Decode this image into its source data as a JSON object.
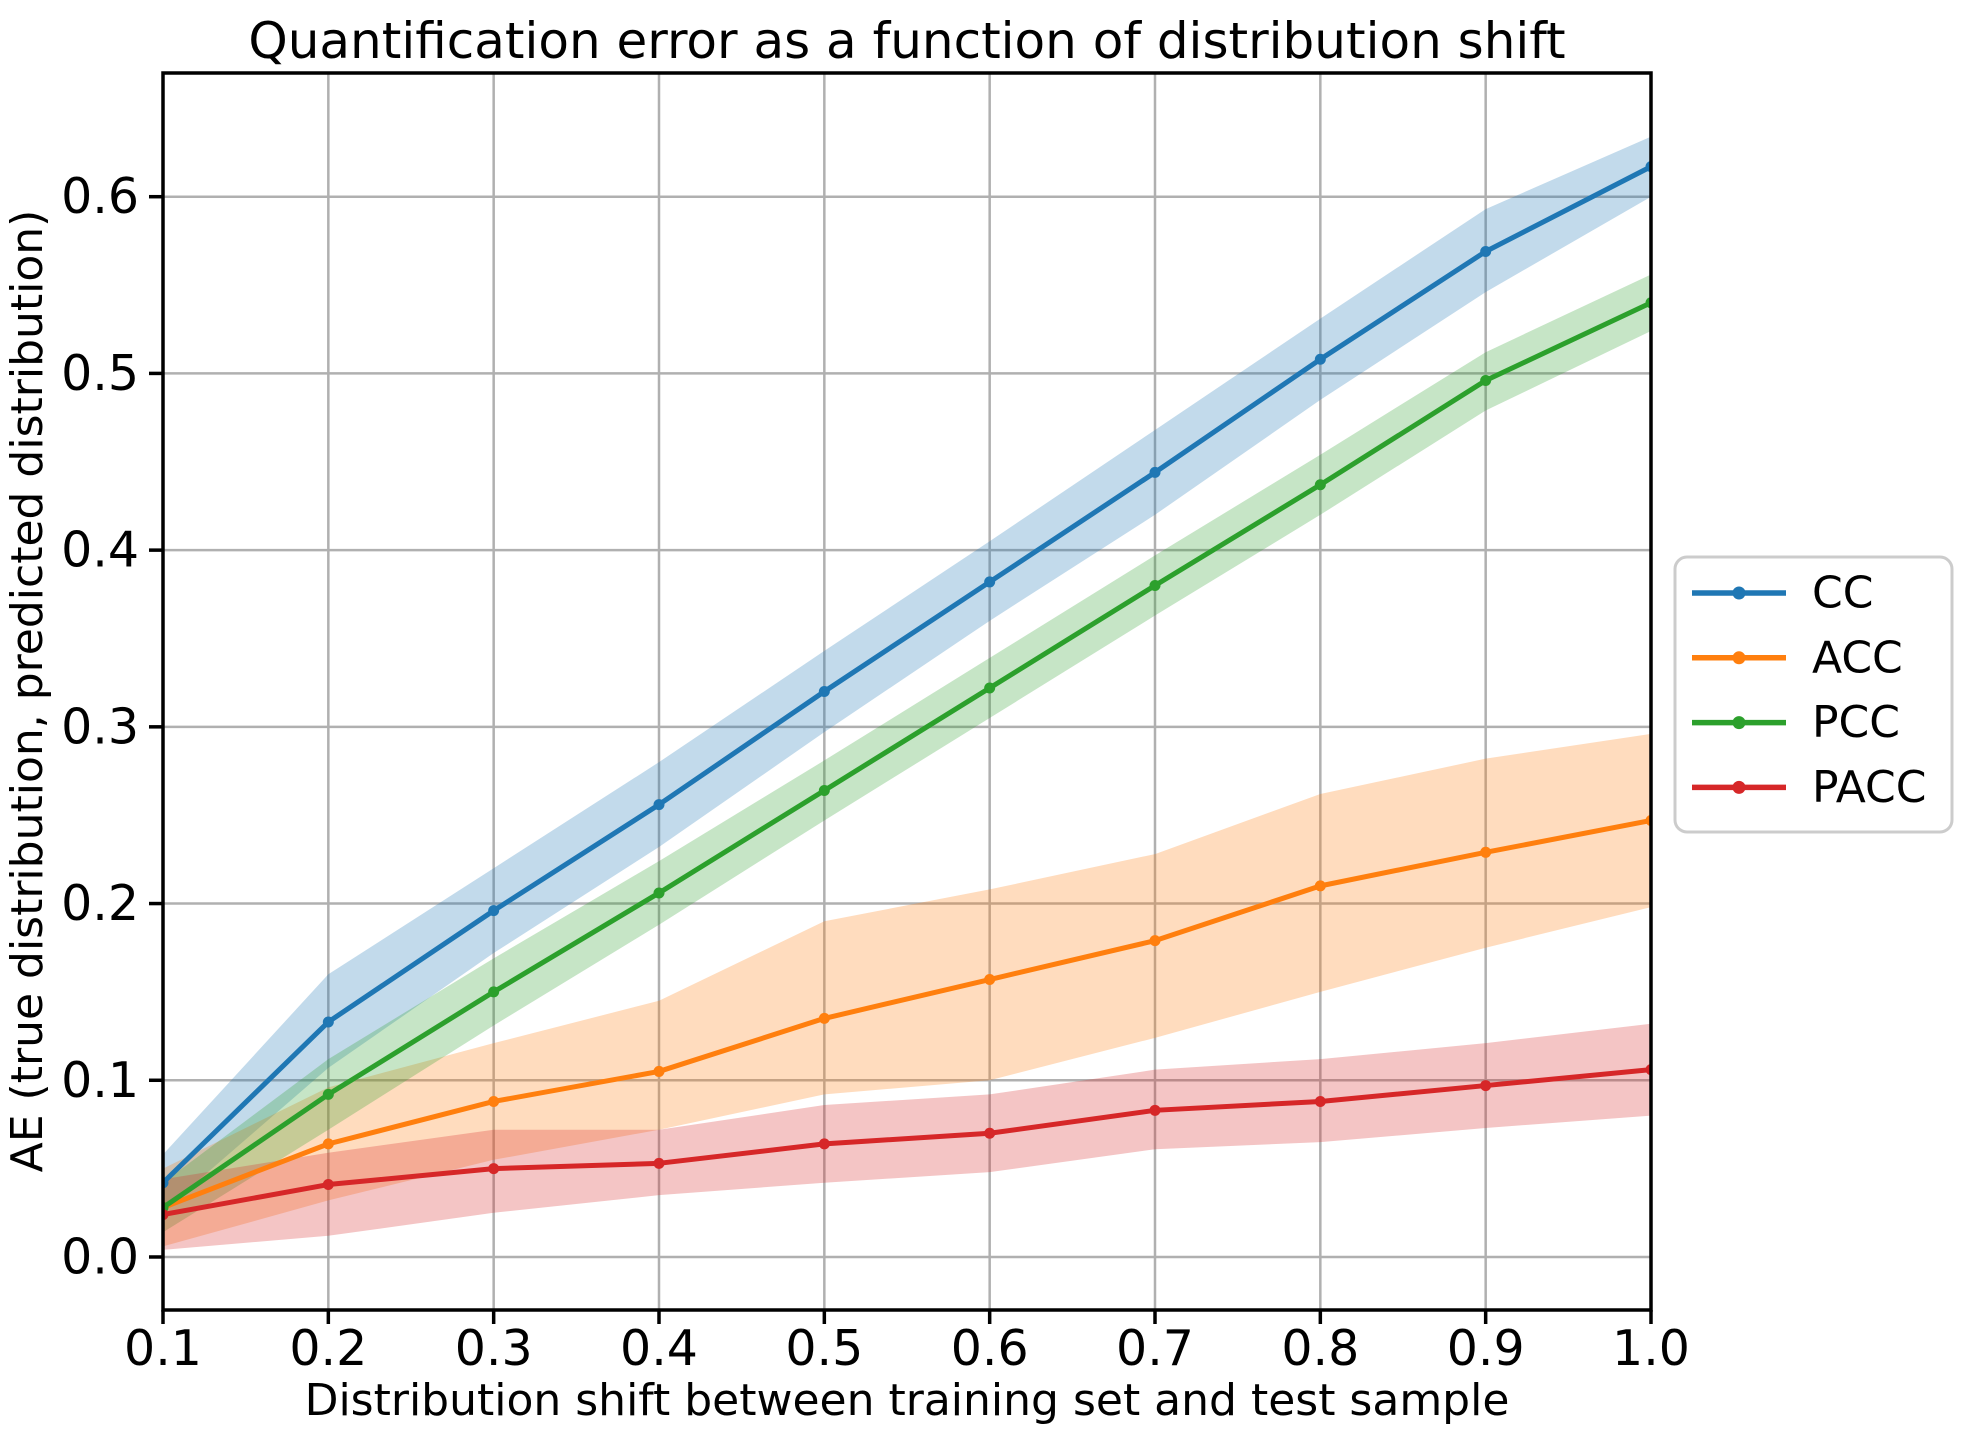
{
  "chart_data": {
    "type": "line",
    "title": "Quantification error as a function of distribution shift",
    "xlabel": "Distribution shift between training set and test sample",
    "ylabel": "AE (true distribution, predicted distribution)",
    "x": [
      0.1,
      0.2,
      0.3,
      0.4,
      0.5,
      0.6,
      0.7,
      0.8,
      0.9,
      1.0
    ],
    "xtick_labels": [
      "0.1",
      "0.2",
      "0.3",
      "0.4",
      "0.5",
      "0.6",
      "0.7",
      "0.8",
      "0.9",
      "1.0"
    ],
    "ytick_values": [
      0.0,
      0.1,
      0.2,
      0.3,
      0.4,
      0.5,
      0.6
    ],
    "ytick_labels": [
      "0.0",
      "0.1",
      "0.2",
      "0.3",
      "0.4",
      "0.5",
      "0.6"
    ],
    "xlim": [
      0.1,
      1.0
    ],
    "ylim": [
      -0.03,
      0.67
    ],
    "grid": true,
    "grid_color": "#b0b0b0",
    "legend": {
      "position": "outside-right"
    },
    "series": [
      {
        "name": "CC",
        "color": "#1f77b4",
        "values": [
          0.042,
          0.133,
          0.196,
          0.256,
          0.32,
          0.382,
          0.444,
          0.508,
          0.569,
          0.617
        ],
        "band_lower": [
          0.026,
          0.107,
          0.172,
          0.232,
          0.297,
          0.36,
          0.42,
          0.485,
          0.546,
          0.6
        ],
        "band_upper": [
          0.058,
          0.16,
          0.22,
          0.28,
          0.343,
          0.405,
          0.468,
          0.531,
          0.593,
          0.634
        ]
      },
      {
        "name": "ACC",
        "color": "#ff7f0e",
        "values": [
          0.028,
          0.064,
          0.088,
          0.105,
          0.135,
          0.157,
          0.179,
          0.21,
          0.229,
          0.247
        ],
        "band_lower": [
          0.006,
          0.032,
          0.055,
          0.072,
          0.092,
          0.1,
          0.124,
          0.15,
          0.175,
          0.198
        ],
        "band_upper": [
          0.05,
          0.096,
          0.121,
          0.145,
          0.19,
          0.208,
          0.228,
          0.262,
          0.282,
          0.296
        ]
      },
      {
        "name": "PCC",
        "color": "#2ca02c",
        "values": [
          0.028,
          0.092,
          0.15,
          0.206,
          0.264,
          0.322,
          0.38,
          0.437,
          0.496,
          0.54
        ],
        "band_lower": [
          0.014,
          0.072,
          0.131,
          0.188,
          0.247,
          0.305,
          0.363,
          0.42,
          0.479,
          0.524
        ],
        "band_upper": [
          0.042,
          0.112,
          0.169,
          0.224,
          0.281,
          0.339,
          0.397,
          0.454,
          0.512,
          0.556
        ]
      },
      {
        "name": "PACC",
        "color": "#d62728",
        "values": [
          0.024,
          0.041,
          0.05,
          0.053,
          0.064,
          0.07,
          0.083,
          0.088,
          0.097,
          0.106
        ],
        "band_lower": [
          0.004,
          0.012,
          0.025,
          0.035,
          0.042,
          0.048,
          0.061,
          0.065,
          0.073,
          0.08
        ],
        "band_upper": [
          0.044,
          0.059,
          0.072,
          0.072,
          0.086,
          0.092,
          0.106,
          0.112,
          0.121,
          0.132
        ]
      }
    ]
  }
}
